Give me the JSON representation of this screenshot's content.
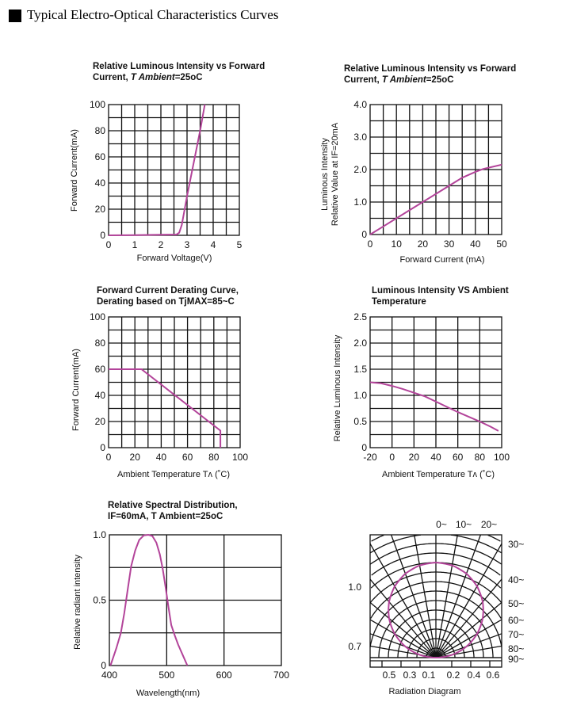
{
  "header": {
    "title": "Typical Electro-Optical Characteristics Curves"
  },
  "curve_color": "#b3449a",
  "chart_data": [
    {
      "type": "line",
      "title": [
        "Relative Luminous Intensity vs Forward",
        "Current, ",
        "T Ambient",
        "=25oC"
      ],
      "xlabel": "Forward Voltage(V)",
      "ylabel": [
        "Forward Current(mA)"
      ],
      "xlim": [
        0,
        5
      ],
      "ylim": [
        0,
        100
      ],
      "xgrid_step": 0.5,
      "ygrid_step": 10,
      "xticks": [
        "0",
        "1",
        "2",
        "3",
        "4",
        "5"
      ],
      "xtick_values": [
        0,
        1,
        2,
        3,
        4,
        5
      ],
      "yticks": [
        "0",
        "20",
        "40",
        "60",
        "80",
        "100"
      ],
      "ytick_values": [
        0,
        20,
        40,
        60,
        80,
        100
      ],
      "x": [
        0,
        1,
        2,
        2.6,
        2.7,
        2.8,
        3.0,
        3.5,
        3.68
      ],
      "y": [
        0,
        0.2,
        0.4,
        0.6,
        2,
        8,
        30,
        80,
        100
      ]
    },
    {
      "type": "line",
      "title": [
        "Relative Luminous Intensity vs Forward",
        "Current, ",
        "T Ambient",
        "=25oC"
      ],
      "xlabel": "Forward Current (mA)",
      "ylabel": [
        "Luminous Intensity",
        "Relative Value at IF=20mA"
      ],
      "xlim": [
        0,
        50
      ],
      "ylim": [
        0,
        4
      ],
      "xgrid_step": 5,
      "ygrid_step": 0.5,
      "xticks": [
        "0",
        "10",
        "20",
        "30",
        "40",
        "50"
      ],
      "xtick_values": [
        0,
        10,
        20,
        30,
        40,
        50
      ],
      "yticks": [
        "0",
        "1.0",
        "2.0",
        "3.0",
        "4.0"
      ],
      "ytick_values": [
        0,
        1,
        2,
        3,
        4
      ],
      "x": [
        0,
        5,
        10,
        20,
        30,
        35,
        40,
        43,
        50
      ],
      "y": [
        0,
        0.25,
        0.5,
        1.0,
        1.5,
        1.75,
        1.93,
        2.02,
        2.15
      ]
    },
    {
      "type": "line",
      "title": [
        "Forward Current Derating Curve,",
        "Derating based on TjMAX=85~C"
      ],
      "xlabel": "Ambient Temperature Tʌ (˚C)",
      "ylabel": [
        "Forward Current(mA)"
      ],
      "xlim": [
        0,
        100
      ],
      "ylim": [
        0,
        100
      ],
      "xgrid_step": 10,
      "ygrid_step": 10,
      "xticks": [
        "0",
        "20",
        "40",
        "60",
        "80",
        "100"
      ],
      "xtick_values": [
        0,
        20,
        40,
        60,
        80,
        100
      ],
      "yticks": [
        "0",
        "20",
        "40",
        "60",
        "80",
        "100"
      ],
      "ytick_values": [
        0,
        20,
        40,
        60,
        80,
        100
      ],
      "x": [
        0,
        25,
        85,
        85
      ],
      "y": [
        60,
        60,
        13,
        0
      ]
    },
    {
      "type": "line",
      "title": [
        "Luminous Intensity VS Ambient",
        "Temperature"
      ],
      "xlabel": "Ambient Temperature Tʌ (˚C)",
      "ylabel": [
        "Relative Luminous Intensity"
      ],
      "xlim": [
        -20,
        100
      ],
      "ylim": [
        0,
        2.5
      ],
      "xgrid_step": 20,
      "ygrid_step": 0.25,
      "xticks": [
        "-20",
        "0",
        "20",
        "40",
        "60",
        "80",
        "100"
      ],
      "xtick_values": [
        -20,
        0,
        20,
        40,
        60,
        80,
        100
      ],
      "yticks": [
        "0",
        "0.5",
        "1.0",
        "1.5",
        "2.0",
        "2.5"
      ],
      "ytick_values": [
        0,
        0.5,
        1,
        1.5,
        2,
        2.5
      ],
      "x": [
        -20,
        -10,
        0,
        10,
        20,
        30,
        40,
        50,
        60,
        70,
        80,
        90,
        97
      ],
      "y": [
        1.25,
        1.23,
        1.18,
        1.12,
        1.05,
        0.98,
        0.88,
        0.78,
        0.68,
        0.59,
        0.5,
        0.4,
        0.32
      ]
    },
    {
      "type": "line",
      "title": [
        "Relative Spectral Distribution,",
        "IF=60mA, T Ambient=25oC"
      ],
      "xlabel": "Wavelength(nm)",
      "ylabel": [
        "Relative radiant intensity"
      ],
      "xlim": [
        400,
        700
      ],
      "ylim": [
        0,
        1
      ],
      "xgrid_step": 100,
      "ygrid_step": 0.25,
      "xticks": [
        "400",
        "500",
        "600",
        "700"
      ],
      "xtick_values": [
        400,
        500,
        600,
        700
      ],
      "yticks": [
        "0",
        "0.5",
        "1.0"
      ],
      "ytick_values": [
        0,
        0.5,
        1
      ],
      "x": [
        402,
        412,
        420,
        426,
        432,
        438,
        445,
        452,
        460,
        468,
        475,
        482,
        488,
        493,
        498,
        503,
        508,
        514,
        520,
        528,
        536
      ],
      "y": [
        0,
        0.13,
        0.25,
        0.4,
        0.58,
        0.76,
        0.88,
        0.96,
        0.995,
        1.0,
        0.99,
        0.94,
        0.85,
        0.74,
        0.6,
        0.45,
        0.31,
        0.23,
        0.16,
        0.08,
        0
      ]
    },
    {
      "type": "polar",
      "title": "Radiation Diagram",
      "angle_labels": [
        "0~",
        "10~",
        "20~",
        "30~",
        "40~",
        "50~",
        "60~",
        "70~",
        "80~",
        "90~"
      ],
      "radius_labels_left": [
        "1.0",
        "0.7"
      ],
      "bottom_labels": [
        "0.5",
        "0.3",
        "0.1",
        "0.2",
        "0.4",
        "0.6"
      ],
      "angles_deg": [
        0,
        10,
        20,
        30,
        40,
        50,
        60,
        70,
        80,
        90
      ],
      "relative_intensity": [
        1.0,
        0.985,
        0.94,
        0.866,
        0.766,
        0.643,
        0.5,
        0.342,
        0.174,
        0
      ]
    }
  ]
}
